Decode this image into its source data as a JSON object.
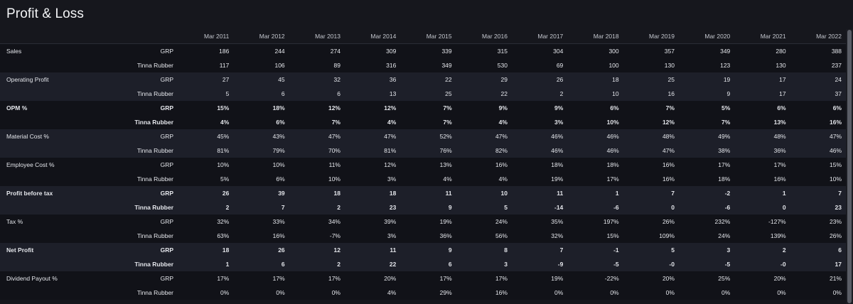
{
  "title": "Profit & Loss",
  "years": [
    "Mar 2011",
    "Mar 2012",
    "Mar 2013",
    "Mar 2014",
    "Mar 2015",
    "Mar 2016",
    "Mar 2017",
    "Mar 2018",
    "Mar 2019",
    "Mar 2020",
    "Mar 2021",
    "Mar 2022"
  ],
  "groups": [
    {
      "metric": "Sales",
      "bold": false,
      "rows": [
        {
          "company": "GRP",
          "values": [
            "186",
            "244",
            "274",
            "309",
            "339",
            "315",
            "304",
            "300",
            "357",
            "349",
            "280",
            "388"
          ]
        },
        {
          "company": "Tinna Rubber",
          "values": [
            "117",
            "106",
            "89",
            "316",
            "349",
            "530",
            "69",
            "100",
            "130",
            "123",
            "130",
            "237"
          ]
        }
      ]
    },
    {
      "metric": "Operating Profit",
      "bold": false,
      "rows": [
        {
          "company": "GRP",
          "values": [
            "27",
            "45",
            "32",
            "36",
            "22",
            "29",
            "26",
            "18",
            "25",
            "19",
            "17",
            "24"
          ]
        },
        {
          "company": "Tinna Rubber",
          "values": [
            "5",
            "6",
            "6",
            "13",
            "25",
            "22",
            "2",
            "10",
            "16",
            "9",
            "17",
            "37"
          ]
        }
      ]
    },
    {
      "metric": "OPM %",
      "bold": true,
      "rows": [
        {
          "company": "GRP",
          "values": [
            "15%",
            "18%",
            "12%",
            "12%",
            "7%",
            "9%",
            "9%",
            "6%",
            "7%",
            "5%",
            "6%",
            "6%"
          ]
        },
        {
          "company": "Tinna Rubber",
          "values": [
            "4%",
            "6%",
            "7%",
            "4%",
            "7%",
            "4%",
            "3%",
            "10%",
            "12%",
            "7%",
            "13%",
            "16%"
          ]
        }
      ]
    },
    {
      "metric": "Material Cost %",
      "bold": false,
      "rows": [
        {
          "company": "GRP",
          "values": [
            "45%",
            "43%",
            "47%",
            "47%",
            "52%",
            "47%",
            "46%",
            "46%",
            "48%",
            "49%",
            "48%",
            "47%"
          ]
        },
        {
          "company": "Tinna Rubber",
          "values": [
            "81%",
            "79%",
            "70%",
            "81%",
            "76%",
            "82%",
            "46%",
            "46%",
            "47%",
            "38%",
            "36%",
            "46%"
          ]
        }
      ]
    },
    {
      "metric": "Employee Cost %",
      "bold": false,
      "rows": [
        {
          "company": "GRP",
          "values": [
            "10%",
            "10%",
            "11%",
            "12%",
            "13%",
            "16%",
            "18%",
            "18%",
            "16%",
            "17%",
            "17%",
            "15%"
          ]
        },
        {
          "company": "Tinna Rubber",
          "values": [
            "5%",
            "6%",
            "10%",
            "3%",
            "4%",
            "4%",
            "19%",
            "17%",
            "16%",
            "18%",
            "16%",
            "10%"
          ]
        }
      ]
    },
    {
      "metric": "Profit before tax",
      "bold": true,
      "rows": [
        {
          "company": "GRP",
          "values": [
            "26",
            "39",
            "18",
            "18",
            "11",
            "10",
            "11",
            "1",
            "7",
            "-2",
            "1",
            "7"
          ]
        },
        {
          "company": "Tinna Rubber",
          "values": [
            "2",
            "7",
            "2",
            "23",
            "9",
            "5",
            "-14",
            "-6",
            "0",
            "-6",
            "0",
            "23"
          ]
        }
      ]
    },
    {
      "metric": "Tax %",
      "bold": false,
      "rows": [
        {
          "company": "GRP",
          "values": [
            "32%",
            "33%",
            "34%",
            "39%",
            "19%",
            "24%",
            "35%",
            "197%",
            "26%",
            "232%",
            "-127%",
            "23%"
          ]
        },
        {
          "company": "Tinna Rubber",
          "values": [
            "63%",
            "16%",
            "-7%",
            "3%",
            "36%",
            "56%",
            "32%",
            "15%",
            "109%",
            "24%",
            "139%",
            "26%"
          ]
        }
      ]
    },
    {
      "metric": "Net Profit",
      "bold": true,
      "rows": [
        {
          "company": "GRP",
          "values": [
            "18",
            "26",
            "12",
            "11",
            "9",
            "8",
            "7",
            "-1",
            "5",
            "3",
            "2",
            "6"
          ]
        },
        {
          "company": "Tinna Rubber",
          "values": [
            "1",
            "6",
            "2",
            "22",
            "6",
            "3",
            "-9",
            "-5",
            "-0",
            "-5",
            "-0",
            "17"
          ]
        }
      ]
    },
    {
      "metric": "Dividend Payout %",
      "bold": false,
      "rows": [
        {
          "company": "GRP",
          "values": [
            "17%",
            "17%",
            "17%",
            "20%",
            "17%",
            "17%",
            "19%",
            "-22%",
            "20%",
            "25%",
            "20%",
            "21%"
          ]
        },
        {
          "company": "Tinna Rubber",
          "values": [
            "0%",
            "0%",
            "0%",
            "4%",
            "29%",
            "16%",
            "0%",
            "0%",
            "0%",
            "0%",
            "0%",
            "0%"
          ]
        }
      ]
    }
  ]
}
